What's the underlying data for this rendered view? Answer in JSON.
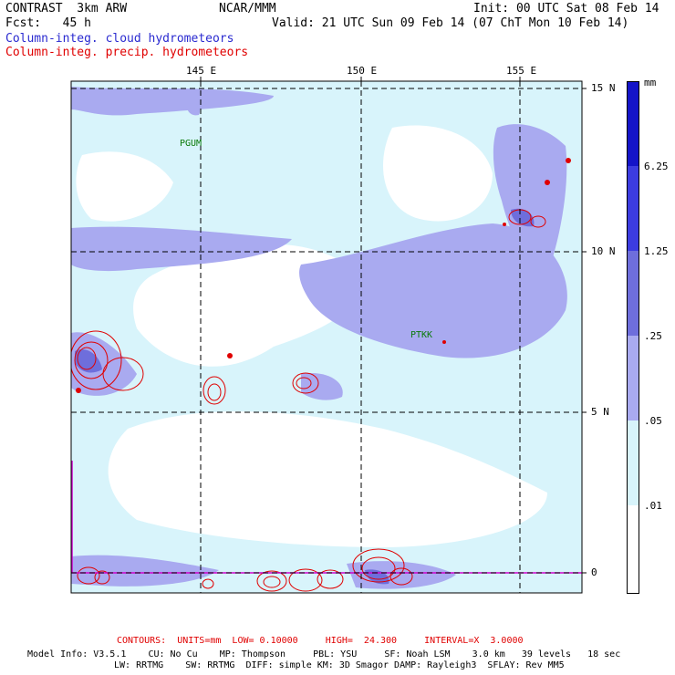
{
  "header": {
    "title_left": "CONTRAST  3km ARW",
    "org": "NCAR/MMM",
    "init": "Init: 00 UTC Sat 08 Feb 14",
    "fcst": "Fcst:   45 h",
    "valid": "Valid: 21 UTC Sun 09 Feb 14 (07 ChT Mon 10 Feb 14)",
    "field1": "Column-integ. cloud hydrometeors",
    "field2": "Column-integ. precip. hydrometeors"
  },
  "map": {
    "lon_labels": [
      "145 E",
      "150 E",
      "155 E"
    ],
    "lat_labels": [
      "15 N",
      "10 N",
      "5 N",
      "0"
    ],
    "stations": [
      "PGUM",
      "PTKK"
    ]
  },
  "colorbar": {
    "unit": "mm",
    "labels": [
      "6.25",
      "1.25",
      ".25",
      ".05",
      ".01"
    ],
    "colors": [
      "#1414c8",
      "#3c3ce0",
      "#6e6edc",
      "#a9aaf0",
      "#d8f4fb",
      "#ffffff"
    ]
  },
  "footer": {
    "contours": "CONTOURS:  UNITS=mm  LOW= 0.10000     HIGH=  24.300     INTERVAL=X  3.0000",
    "model_line1": "Model Info: V3.5.1    CU: No Cu    MP: Thompson     PBL: YSU     SF: Noah LSM    3.0 km   39 levels   18 sec",
    "model_line2": "LW: RRTMG    SW: RRTMG  DIFF: simple KM: 3D Smagor DAMP: Rayleigh3  SFLAY: Rev MM5"
  }
}
